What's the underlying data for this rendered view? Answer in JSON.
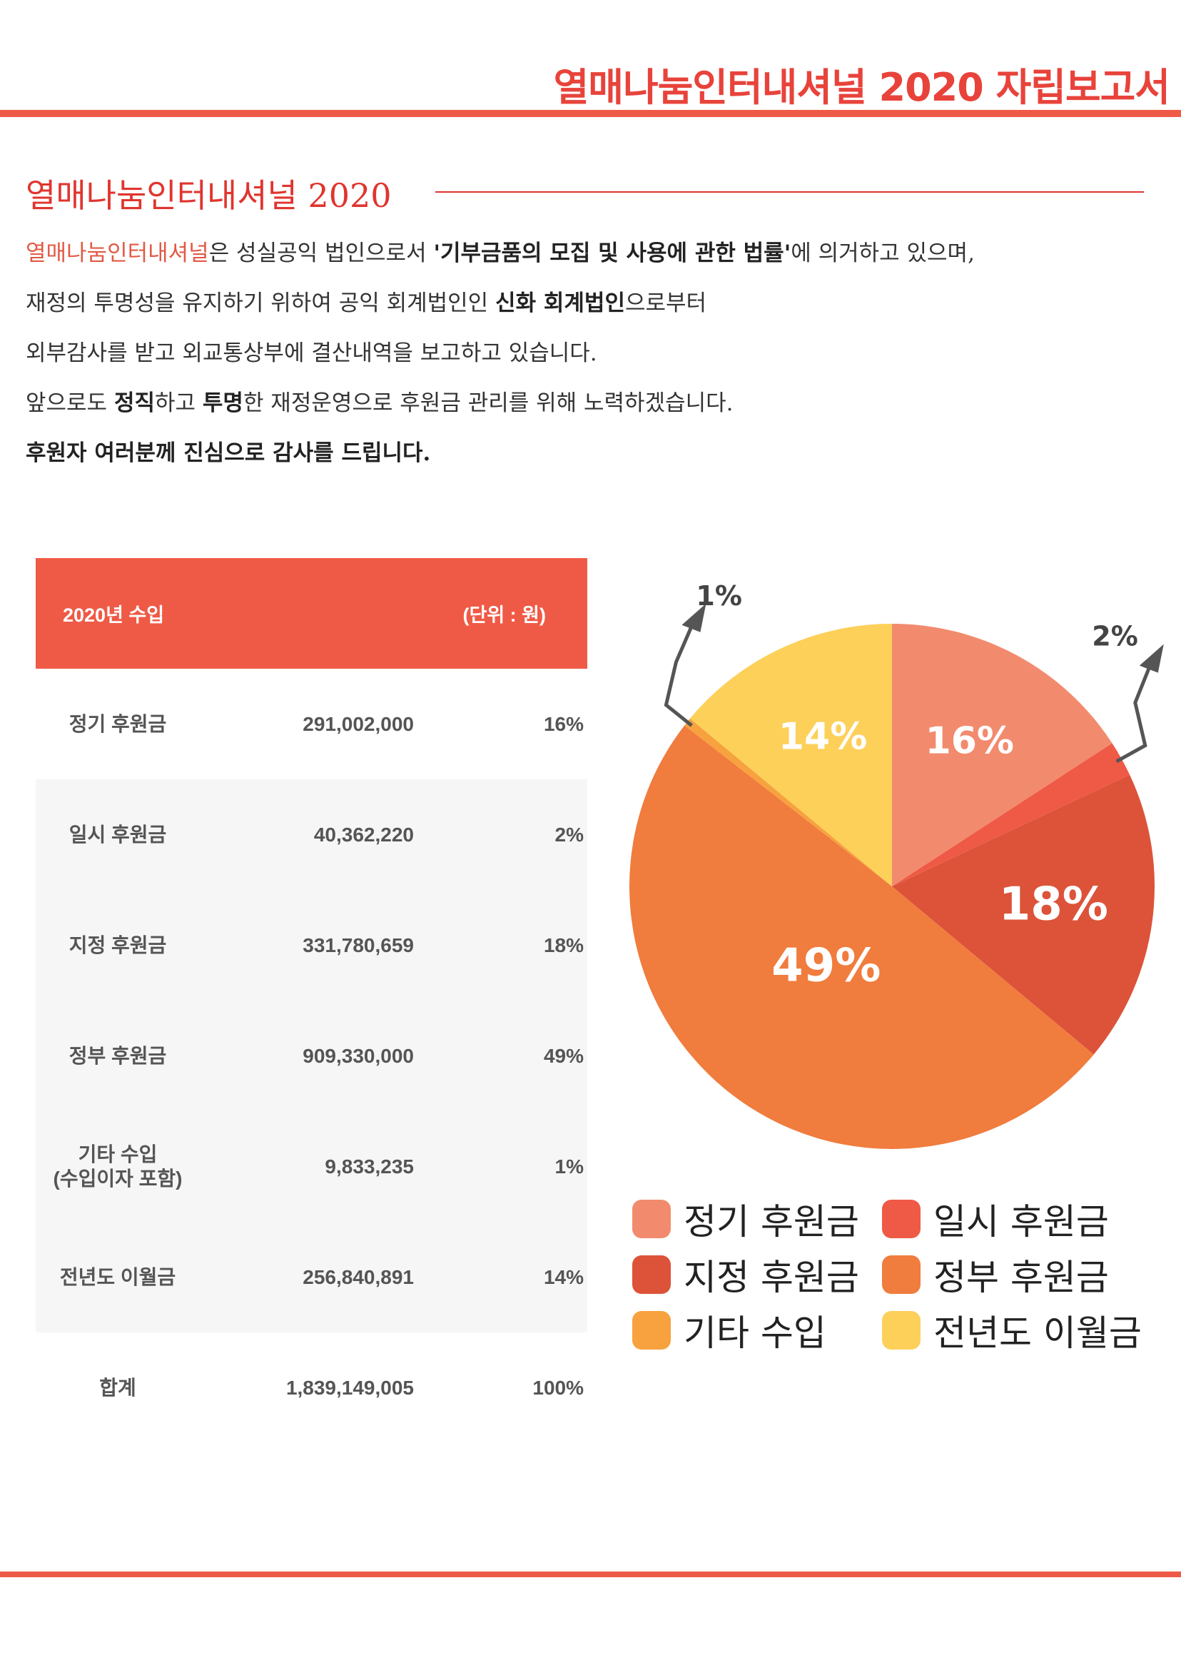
{
  "header": {
    "title": "열매나눔인터내셔널 2020 자립보고서"
  },
  "section": {
    "title": "열매나눔인터내셔널 2020"
  },
  "intro": {
    "line1": {
      "accent": "열매나눔인터내셔널",
      "text1": "은 성실공익 법인으로서 ",
      "bold1": "'기부금품의 모집 및 사용에 관한 법률'",
      "text2": "에 의거하고 있으며,"
    },
    "line2": {
      "text1": "재정의 투명성을 유지하기 위하여 공익 회계법인인 ",
      "bold1": "신화 회계법인",
      "text2": "으로부터"
    },
    "line3": {
      "text1": "외부감사를 받고 외교통상부에 결산내역을 보고하고 있습니다."
    },
    "line4": {
      "text1": "앞으로도 ",
      "bold1": "정직",
      "text2": "하고 ",
      "bold2": "투명",
      "text3": "한 재정운영으로 후원금 관리를 위해 노력하겠습니다."
    },
    "line5": {
      "bold1": "후원자 여러분께 진심으로 감사를 드립니다."
    }
  },
  "table": {
    "title": "2020년 수입",
    "unit": "(단위 : 원)",
    "rows": [
      {
        "name": "정기 후원금",
        "amount": "291,002,000",
        "percent": "16%"
      },
      {
        "name": "일시 후원금",
        "amount": "40,362,220",
        "percent": "2%"
      },
      {
        "name": "지정 후원금",
        "amount": "331,780,659",
        "percent": "18%"
      },
      {
        "name": "정부 후원금",
        "amount": "909,330,000",
        "percent": "49%"
      },
      {
        "name": "기타 수입",
        "sub": "(수입이자 포함)",
        "amount": "9,833,235",
        "percent": "1%"
      },
      {
        "name": "전년도 이월금",
        "amount": "256,840,891",
        "percent": "14%"
      }
    ],
    "total": {
      "name": "합계",
      "amount": "1,839,149,005",
      "percent": "100%"
    }
  },
  "chart_data": {
    "type": "pie",
    "categories": [
      "정기 후원금",
      "일시 후원금",
      "지정 후원금",
      "정부 후원금",
      "기타 수입",
      "전년도 이월금"
    ],
    "values": [
      291002000,
      40362220,
      331780659,
      909330000,
      9833235,
      256840891
    ],
    "labels": [
      "16%",
      "2%",
      "18%",
      "49%",
      "1%",
      "14%"
    ],
    "colors": [
      "#f28b6e",
      "#ef5a46",
      "#dc5339",
      "#f07c3e",
      "#f7a23e",
      "#fdd05a"
    ],
    "legend_position": "bottom"
  }
}
